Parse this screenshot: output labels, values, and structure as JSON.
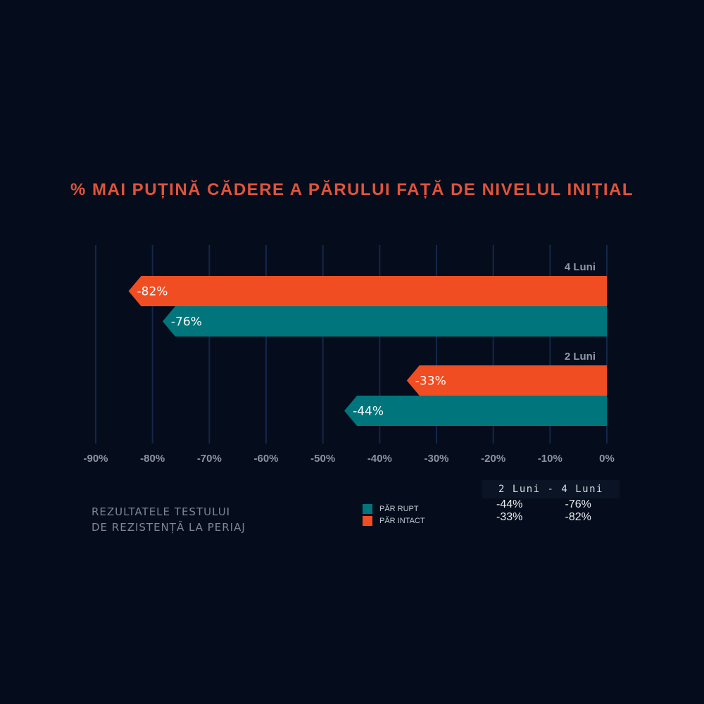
{
  "title": "% MAI PUȚINĂ CĂDERE A PĂRULUI FAȚĂ DE NIVELUL INIȚIAL",
  "chart_data": {
    "type": "bar",
    "orientation": "horizontal",
    "title": "% MAI PUȚINĂ CĂDERE A PĂRULUI FAȚĂ DE NIVELUL INIȚIAL",
    "xlim": [
      -90,
      0
    ],
    "x_ticks": [
      -90,
      -80,
      -70,
      -60,
      -50,
      -40,
      -30,
      -20,
      -10,
      0
    ],
    "x_tick_labels": [
      "-90%",
      "-80%",
      "-70%",
      "-60%",
      "-50%",
      "-40%",
      "-30%",
      "-20%",
      "-10%",
      "0%"
    ],
    "grid": true,
    "groups": [
      {
        "label": "4 Luni",
        "bars": [
          {
            "series": "PĂR INTACT",
            "value": -82,
            "label": "-82%"
          },
          {
            "series": "PĂR RUPT",
            "value": -76,
            "label": "-76%"
          }
        ]
      },
      {
        "label": "2 Luni",
        "bars": [
          {
            "series": "PĂR INTACT",
            "value": -33,
            "label": "-33%"
          },
          {
            "series": "PĂR RUPT",
            "value": -44,
            "label": "-44%"
          }
        ]
      }
    ],
    "series": [
      {
        "name": "PĂR RUPT",
        "color": "#00757c"
      },
      {
        "name": "PĂR INTACT",
        "color": "#f04d23"
      }
    ]
  },
  "footnote": [
    "REZULTATELE TESTULUI",
    "DE REZISTENȚĂ LA PERIAJ"
  ],
  "legend": [
    {
      "label": "PĂR RUPT",
      "color": "#00757c"
    },
    {
      "label": "PĂR INTACT",
      "color": "#f04d23"
    }
  ],
  "summary": {
    "header": "2 Luni - 4 Luni",
    "rows": [
      {
        "two_months": "-44%",
        "four_months": "-76%"
      },
      {
        "two_months": "-33%",
        "four_months": "-82%"
      }
    ]
  }
}
